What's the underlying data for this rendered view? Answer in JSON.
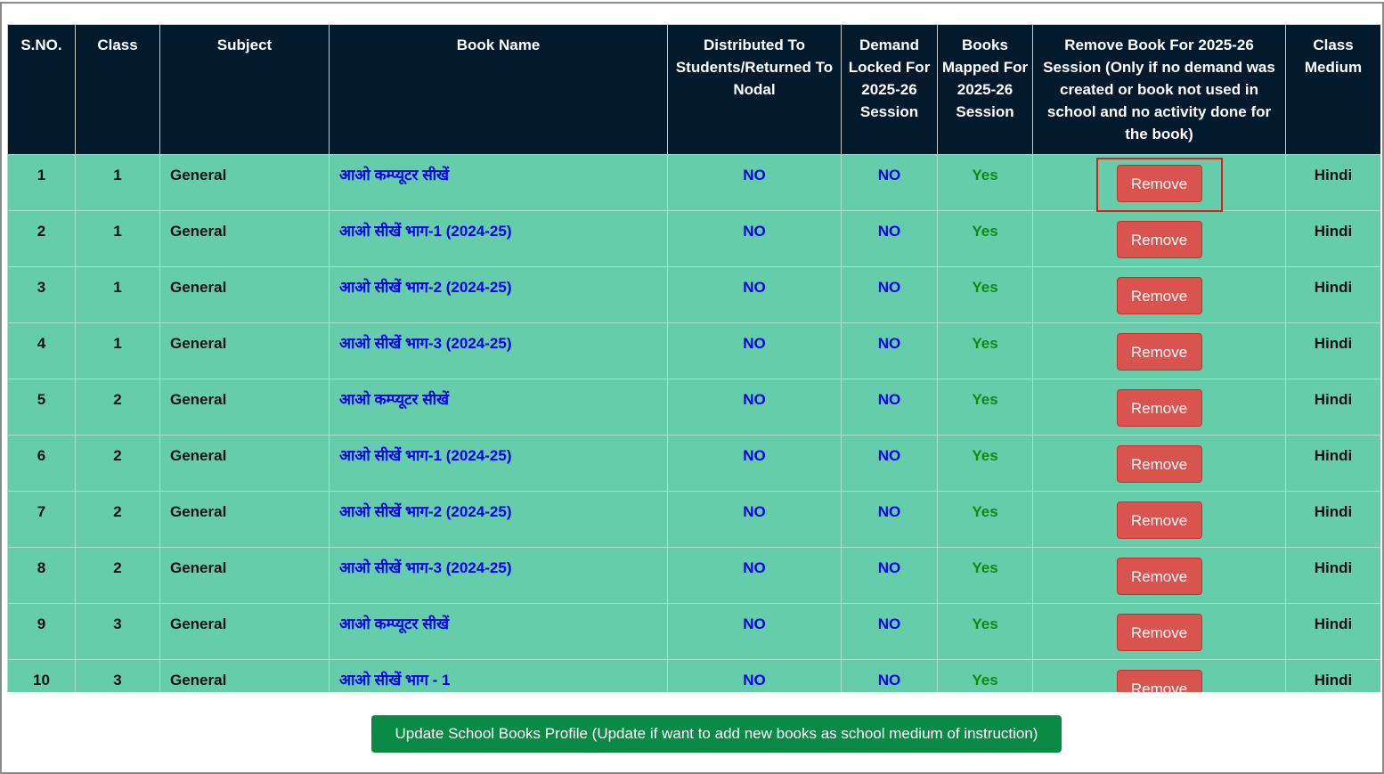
{
  "table": {
    "headers": [
      "S.NO.",
      "Class",
      "Subject",
      "Book Name",
      "Distributed To Students/Returned To Nodal",
      "Demand Locked For 2025-26 Session",
      "Books Mapped For 2025-26 Session",
      "Remove Book For 2025-26 Session (Only if no demand was created or book not used in school and no activity done for the book)",
      "Class Medium"
    ],
    "rows": [
      [
        1,
        1,
        "General",
        "आओ कम्प्यूटर सीखें",
        "NO",
        "NO",
        "Yes",
        "Remove",
        "Hindi"
      ],
      [
        2,
        1,
        "General",
        "आओ सीखें भाग-1 (2024-25)",
        "NO",
        "NO",
        "Yes",
        "Remove",
        "Hindi"
      ],
      [
        3,
        1,
        "General",
        "आओ सीखें भाग-2 (2024-25)",
        "NO",
        "NO",
        "Yes",
        "Remove",
        "Hindi"
      ],
      [
        4,
        1,
        "General",
        "आओ सीखें भाग-3 (2024-25)",
        "NO",
        "NO",
        "Yes",
        "Remove",
        "Hindi"
      ],
      [
        5,
        2,
        "General",
        "आओ कम्प्यूटर सीखें",
        "NO",
        "NO",
        "Yes",
        "Remove",
        "Hindi"
      ],
      [
        6,
        2,
        "General",
        "आओ सीखें भाग-1 (2024-25)",
        "NO",
        "NO",
        "Yes",
        "Remove",
        "Hindi"
      ],
      [
        7,
        2,
        "General",
        "आओ सीखें भाग-2 (2024-25)",
        "NO",
        "NO",
        "Yes",
        "Remove",
        "Hindi"
      ],
      [
        8,
        2,
        "General",
        "आओ सीखें भाग-3 (2024-25)",
        "NO",
        "NO",
        "Yes",
        "Remove",
        "Hindi"
      ],
      [
        9,
        3,
        "General",
        "आओ कम्प्यूटर सीखें",
        "NO",
        "NO",
        "Yes",
        "Remove",
        "Hindi"
      ],
      [
        10,
        3,
        "General",
        "आओ सीखें भाग - 1",
        "NO",
        "NO",
        "Yes",
        "Remove",
        "Hindi"
      ]
    ]
  },
  "footer_button": "Update School Books Profile (Update if want to add new books as school medium of instruction)"
}
